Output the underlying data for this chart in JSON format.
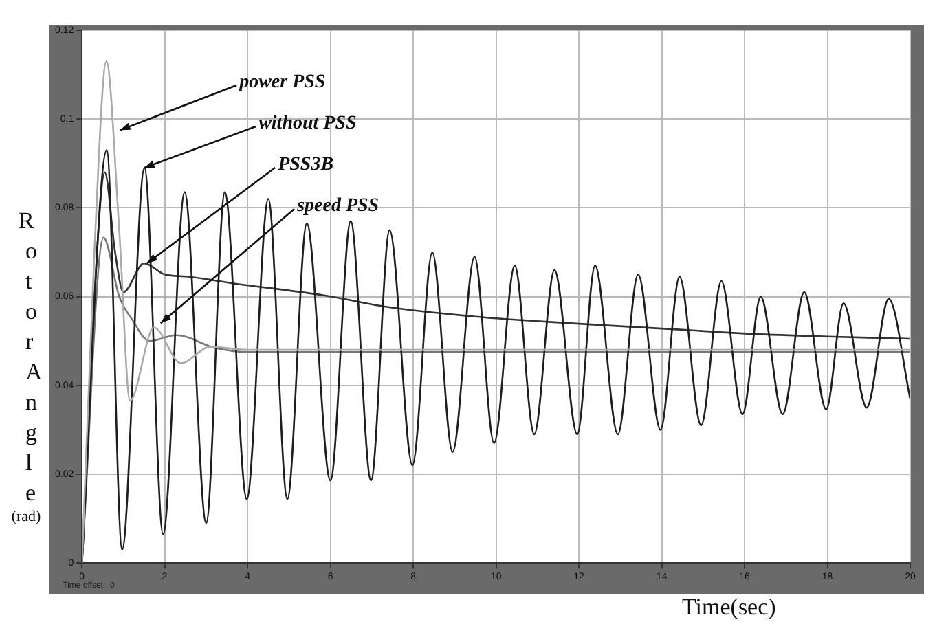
{
  "chart_data": {
    "type": "line",
    "xlabel": "Time(sec)",
    "ylabel": "Rotor Angle (rad)",
    "xlim": [
      0,
      20
    ],
    "xticks": [
      0,
      2,
      4,
      6,
      8,
      10,
      12,
      14,
      16,
      18,
      20
    ],
    "ylim": [
      0,
      0.12
    ],
    "yticks": [
      0,
      0.02,
      0.04,
      0.06,
      0.08,
      0.1,
      0.12
    ],
    "grid": true,
    "legend": false,
    "marker": "none",
    "line_style": "solid",
    "series": [
      {
        "color": "#aaaaaa",
        "x": [
          0,
          0.3,
          0.59,
          0.9,
          1.16,
          1.74,
          2.39,
          3.1,
          4,
          20
        ],
        "values": [
          0,
          0.07,
          0.113,
          0.075,
          0.0366,
          0.053,
          0.045,
          0.0487,
          0.048,
          0.048
        ]
      },
      {
        "color": "#1e1e1e",
        "x": [
          0,
          0.6,
          0.97,
          1.51,
          1.96,
          2.48,
          3.0,
          3.45,
          3.98,
          4.5,
          4.96,
          5.43,
          6.0,
          6.49,
          6.98,
          7.43,
          7.98,
          8.46,
          8.95,
          9.48,
          9.95,
          10.45,
          10.92,
          11.41,
          11.96,
          12.39,
          12.94,
          13.43,
          13.97,
          14.43,
          14.95,
          15.44,
          15.95,
          16.39,
          16.92,
          17.44,
          17.97,
          18.39,
          18.95,
          19.48,
          20
        ],
        "values": [
          0,
          0.093,
          0.003,
          0.089,
          0.0065,
          0.0835,
          0.009,
          0.0835,
          0.0144,
          0.082,
          0.0144,
          0.0765,
          0.0186,
          0.077,
          0.0186,
          0.075,
          0.022,
          0.07,
          0.025,
          0.069,
          0.027,
          0.067,
          0.029,
          0.066,
          0.029,
          0.067,
          0.029,
          0.065,
          0.03,
          0.0645,
          0.031,
          0.0635,
          0.0335,
          0.06,
          0.0335,
          0.061,
          0.0346,
          0.0585,
          0.035,
          0.0595,
          0.037
        ]
      },
      {
        "color": "#333333",
        "x": [
          0,
          0.3,
          0.55,
          0.8,
          1.0,
          1.5,
          2.0,
          2.56,
          3.64,
          5.84,
          7.37,
          9.5,
          11.8,
          14,
          16.2,
          18,
          20
        ],
        "values": [
          0,
          0.06,
          0.088,
          0.07,
          0.061,
          0.0675,
          0.065,
          0.0645,
          0.063,
          0.0603,
          0.0577,
          0.0555,
          0.054,
          0.0528,
          0.0516,
          0.051,
          0.0505
        ]
      },
      {
        "color": "#777777",
        "x": [
          0,
          0.52,
          0.9,
          1.2,
          1.63,
          2.28,
          3.2,
          4,
          20
        ],
        "values": [
          0,
          0.0733,
          0.06,
          0.055,
          0.05,
          0.0513,
          0.0485,
          0.0475,
          0.0475
        ]
      }
    ],
    "annotations": [
      {
        "text": "power PSS",
        "x": 0.92,
        "y": 0.0975
      },
      {
        "text": "without PSS",
        "x": 1.5,
        "y": 0.089
      },
      {
        "text": "PSS3B",
        "x": 1.57,
        "y": 0.0675
      },
      {
        "text": "speed PSS",
        "x": 1.9,
        "y": 0.054
      },
      "Time offset:  0"
    ]
  }
}
